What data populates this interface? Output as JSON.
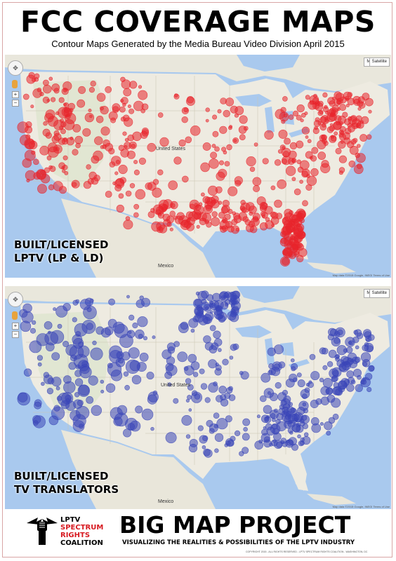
{
  "header": {
    "title": "FCC COVERAGE MAPS",
    "subtitle": "Contour Maps Generated by the Media Bureau Video Division April 2015"
  },
  "map_controls": {
    "map_type": "Map",
    "satellite": "Satellite",
    "zoom_in": "+",
    "zoom_out": "−",
    "nav_glyph": "✥",
    "attribution": "Map data ©2015 Google, INEGI  Terms of Use"
  },
  "colors": {
    "lptv_dots": "#e8242c",
    "translator_dots": "#3a46b8",
    "water": "#a9c9ee",
    "land": "#eeebe1",
    "brand_red": "#d71920"
  },
  "maps": [
    {
      "overlay_line1": "BUILT/LICENSED",
      "overlay_line2": "LPTV (LP & LD)",
      "labels": {
        "country": "United States",
        "mexico": "Mexico"
      }
    },
    {
      "overlay_line1": "BUILT/LICENSED",
      "overlay_line2": "TV TRANSLATORS",
      "labels": {
        "country": "United States",
        "mexico": "Mexico"
      }
    }
  ],
  "footer": {
    "org_line1": "LPTV",
    "org_line2": "SPECTRUM",
    "org_line3": "RIGHTS",
    "org_line4": "COALITION",
    "project_title": "BIG MAP PROJECT",
    "tagline": "VISUALIZING THE REALITIES & POSSIBILITIES OF THE LPTV INDUSTRY",
    "copyright": "COPYRIGHT 2015 - ALL RIGHTS RESERVED - LPTV SPECTRUM RIGHTS COALITION - WASHINGTON, DC"
  }
}
